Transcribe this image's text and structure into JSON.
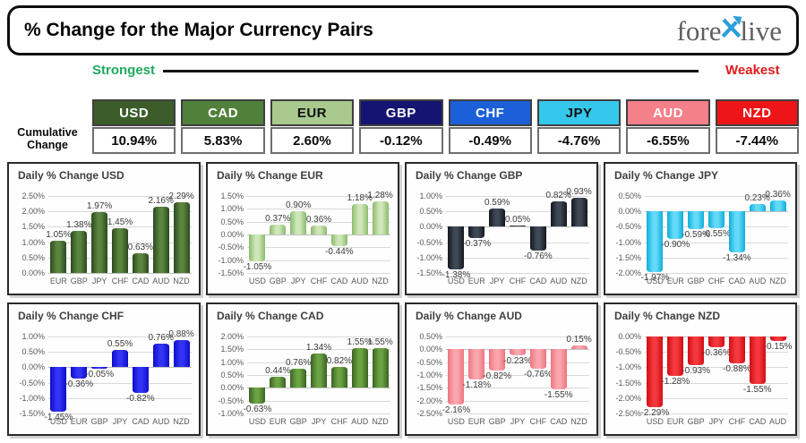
{
  "header": {
    "title": "% Change for the Major Currency Pairs",
    "logo_pre": "fore",
    "logo_post": "live",
    "logo_x_color": "#2b9fd9",
    "logo_text_color": "#5f5f5f"
  },
  "scale": {
    "strongest": "Strongest",
    "weakest": "Weakest",
    "strongest_color": "#1fa95f",
    "weakest_color": "#e01b1b"
  },
  "cumulative": {
    "label": "Cumulative Change",
    "items": [
      {
        "code": "USD",
        "value": "10.94%",
        "bg": "#3c5c2a",
        "fg": "#ffffff"
      },
      {
        "code": "CAD",
        "value": "5.83%",
        "bg": "#50803a",
        "fg": "#ffffff"
      },
      {
        "code": "EUR",
        "value": "2.60%",
        "bg": "#a9c98f",
        "fg": "#101010"
      },
      {
        "code": "GBP",
        "value": "-0.12%",
        "bg": "#141472",
        "fg": "#ffffff"
      },
      {
        "code": "CHF",
        "value": "-0.49%",
        "bg": "#1b60d8",
        "fg": "#ffffff"
      },
      {
        "code": "JPY",
        "value": "-4.76%",
        "bg": "#35c8ec",
        "fg": "#101010"
      },
      {
        "code": "AUD",
        "value": "-6.55%",
        "bg": "#f4808a",
        "fg": "#ffffff"
      },
      {
        "code": "NZD",
        "value": "-7.44%",
        "bg": "#ee1518",
        "fg": "#ffffff"
      }
    ]
  },
  "chart_data": [
    {
      "type": "bar",
      "code": "USD",
      "title": "Daily % Change USD",
      "categories": [
        "EUR",
        "GBP",
        "JPY",
        "CHF",
        "CAD",
        "AUD",
        "NZD"
      ],
      "values": [
        1.05,
        1.38,
        1.97,
        1.45,
        0.63,
        2.16,
        2.29
      ],
      "ylim": [
        0.0,
        2.5
      ],
      "ytick_step": 0.5,
      "grid": true,
      "legend": "none",
      "bar_edge_color": "#2d4a1d",
      "bar_mid_color": "#5a8440"
    },
    {
      "type": "bar",
      "code": "EUR",
      "title": "Daily % Change EUR",
      "categories": [
        "USD",
        "GBP",
        "JPY",
        "CHF",
        "CAD",
        "AUD",
        "NZD"
      ],
      "values": [
        -1.05,
        0.37,
        0.9,
        0.36,
        -0.44,
        1.18,
        1.28
      ],
      "ylim": [
        -1.5,
        1.5
      ],
      "ytick_step": 0.5,
      "grid": true,
      "legend": "none",
      "bar_edge_color": "#8cba6e",
      "bar_mid_color": "#cfe7b8"
    },
    {
      "type": "bar",
      "code": "GBP",
      "title": "Daily % Change GBP",
      "categories": [
        "USD",
        "EUR",
        "JPY",
        "CHF",
        "CAD",
        "AUD",
        "NZD"
      ],
      "values": [
        -1.38,
        -0.37,
        0.59,
        0.05,
        -0.76,
        0.82,
        0.93
      ],
      "ylim": [
        -1.5,
        1.0
      ],
      "ytick_step": 0.5,
      "grid": true,
      "legend": "none",
      "bar_edge_color": "#14181f",
      "bar_mid_color": "#3e4856"
    },
    {
      "type": "bar",
      "code": "JPY",
      "title": "Daily % Change JPY",
      "categories": [
        "USD",
        "EUR",
        "GBP",
        "CHF",
        "CAD",
        "AUD",
        "NZD"
      ],
      "values": [
        -1.97,
        -0.9,
        -0.59,
        -0.55,
        -1.34,
        0.23,
        0.36
      ],
      "ylim": [
        -2.0,
        0.5
      ],
      "ytick_step": 0.5,
      "grid": true,
      "legend": "none",
      "bar_edge_color": "#10aeda",
      "bar_mid_color": "#64daf8"
    },
    {
      "type": "bar",
      "code": "CHF",
      "title": "Daily % Change CHF",
      "categories": [
        "USD",
        "EUR",
        "GBP",
        "JPY",
        "CAD",
        "AUD",
        "NZD"
      ],
      "values": [
        -1.45,
        -0.36,
        -0.05,
        0.55,
        -0.82,
        0.76,
        0.88
      ],
      "ylim": [
        -1.5,
        1.0
      ],
      "ytick_step": 0.5,
      "grid": true,
      "legend": "none",
      "bar_edge_color": "#0c0ccd",
      "bar_mid_color": "#3333f2"
    },
    {
      "type": "bar",
      "code": "CAD",
      "title": "Daily % Change CAD",
      "categories": [
        "USD",
        "EUR",
        "GBP",
        "JPY",
        "CHF",
        "AUD",
        "NZD"
      ],
      "values": [
        -0.63,
        0.44,
        0.76,
        1.34,
        0.82,
        1.55,
        1.55
      ],
      "ylim": [
        -1.0,
        2.0
      ],
      "ytick_step": 0.5,
      "grid": true,
      "legend": "none",
      "bar_edge_color": "#3a6322",
      "bar_mid_color": "#6ba243"
    },
    {
      "type": "bar",
      "code": "AUD",
      "title": "Daily % Change AUD",
      "categories": [
        "USD",
        "EUR",
        "GBP",
        "JPY",
        "CHF",
        "CAD",
        "NZD"
      ],
      "values": [
        -2.16,
        -1.18,
        -0.82,
        -0.23,
        -0.76,
        -1.55,
        0.15
      ],
      "ylim": [
        -2.5,
        0.5
      ],
      "ytick_step": 0.5,
      "grid": true,
      "legend": "none",
      "bar_edge_color": "#ee7580",
      "bar_mid_color": "#f9a6ad"
    },
    {
      "type": "bar",
      "code": "NZD",
      "title": "Daily % Change NZD",
      "categories": [
        "USD",
        "EUR",
        "GBP",
        "JPY",
        "CHF",
        "CAD",
        "AUD"
      ],
      "values": [
        -2.29,
        -1.28,
        -0.93,
        -0.36,
        -0.88,
        -1.55,
        -0.15
      ],
      "ylim": [
        -2.5,
        0.0
      ],
      "ytick_step": 0.5,
      "grid": true,
      "legend": "none",
      "bar_edge_color": "#cf0e13",
      "bar_mid_color": "#f4383d"
    }
  ]
}
